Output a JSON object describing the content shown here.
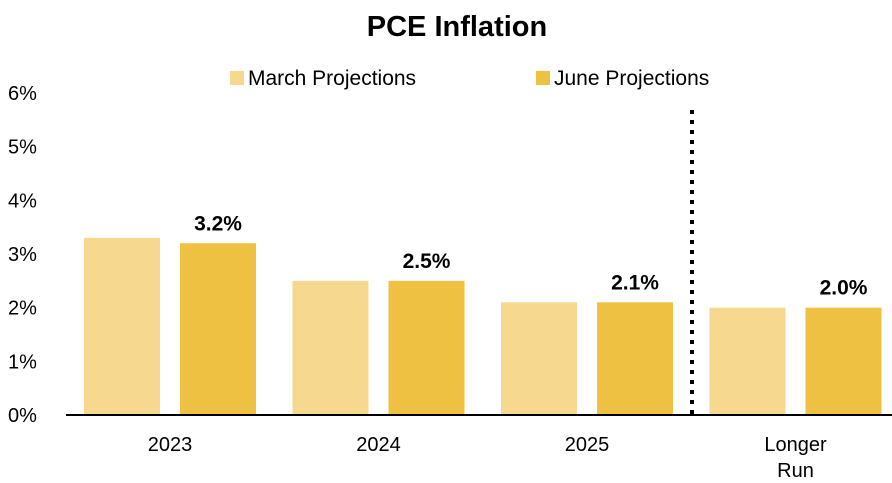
{
  "chart_data": {
    "type": "bar",
    "title": "PCE Inflation",
    "xlabel": "",
    "ylabel": "",
    "ylim": [
      0,
      6
    ],
    "y_ticks": [
      "0%",
      "1%",
      "2%",
      "3%",
      "4%",
      "5%",
      "6%"
    ],
    "y_tick_values": [
      0,
      1,
      2,
      3,
      4,
      5,
      6
    ],
    "categories": [
      [
        "2023"
      ],
      [
        "2024"
      ],
      [
        "2025"
      ],
      [
        "Longer",
        "Run"
      ]
    ],
    "series": [
      {
        "name": "March Projections",
        "color": "#F6D88E",
        "values": [
          3.3,
          2.5,
          2.1,
          2.0
        ]
      },
      {
        "name": "June Projections",
        "color": "#EFC142",
        "values": [
          3.2,
          2.5,
          2.1,
          2.0
        ]
      }
    ],
    "data_labels": [
      "3.2%",
      "2.5%",
      "2.1%",
      "2.0%"
    ],
    "divider": "dotted line before Longer Run",
    "legend": "top-center",
    "grid": false
  }
}
